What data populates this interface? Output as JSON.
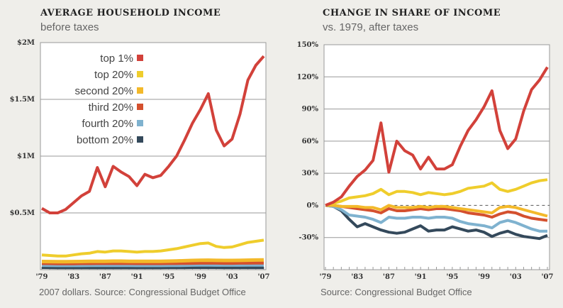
{
  "chart_data": [
    {
      "type": "line",
      "title": "AVERAGE HOUSEHOLD INCOME",
      "subtitle": "before taxes",
      "source": "2007 dollars. Source: Congressional Budget Office",
      "ylim": [
        0,
        2000000
      ],
      "yticks": [
        "$0.5M",
        "$1M",
        "$1.5M",
        "$2M"
      ],
      "ytick_values": [
        500000,
        1000000,
        1500000,
        2000000
      ],
      "xticks": [
        "'79",
        "'83",
        "'87",
        "'91",
        "'95",
        "'99",
        "'03",
        "'07"
      ],
      "x_start": 1979,
      "x_end": 2007,
      "grid": true,
      "legend": "top-left",
      "series": [
        {
          "name": "top 1%",
          "color": "#d2413a",
          "values": [
            540000,
            500000,
            500000,
            530000,
            590000,
            650000,
            690000,
            900000,
            730000,
            910000,
            860000,
            820000,
            740000,
            840000,
            810000,
            830000,
            910000,
            1000000,
            1140000,
            1290000,
            1410000,
            1550000,
            1230000,
            1090000,
            1150000,
            1370000,
            1670000,
            1800000,
            1880000
          ]
        },
        {
          "name": "top 20%",
          "color": "#efcd2c",
          "values": [
            130000,
            125000,
            120000,
            120000,
            130000,
            140000,
            145000,
            160000,
            155000,
            165000,
            165000,
            160000,
            155000,
            160000,
            160000,
            165000,
            175000,
            185000,
            200000,
            215000,
            230000,
            235000,
            205000,
            195000,
            200000,
            220000,
            240000,
            250000,
            260000
          ]
        },
        {
          "name": "second 20%",
          "color": "#f3b92a",
          "values": [
            72000,
            71000,
            70000,
            70000,
            71000,
            72000,
            73000,
            74000,
            74000,
            75000,
            75000,
            74000,
            73000,
            73000,
            73000,
            74000,
            75000,
            77000,
            79000,
            81000,
            83000,
            84000,
            82000,
            81000,
            81000,
            82000,
            84000,
            85000,
            86000
          ]
        },
        {
          "name": "third 20%",
          "color": "#d4502e",
          "values": [
            57000,
            56000,
            55000,
            55000,
            55000,
            56000,
            56000,
            57000,
            57000,
            57000,
            57000,
            57000,
            56000,
            56000,
            56000,
            56000,
            57000,
            57000,
            58000,
            59000,
            60000,
            61000,
            60000,
            59000,
            59000,
            60000,
            60000,
            61000,
            61000
          ]
        },
        {
          "name": "fourth 20%",
          "color": "#7fb2cf",
          "values": [
            40000,
            39000,
            38000,
            38000,
            38000,
            38000,
            39000,
            39000,
            39000,
            39000,
            39000,
            39000,
            38000,
            38000,
            38000,
            38000,
            39000,
            39000,
            40000,
            41000,
            42000,
            42000,
            41000,
            41000,
            41000,
            41000,
            42000,
            42000,
            42000
          ]
        },
        {
          "name": "bottom 20%",
          "color": "#34495b",
          "values": [
            22000,
            21000,
            20000,
            20000,
            20000,
            20000,
            20000,
            20000,
            20000,
            20000,
            20000,
            20000,
            20000,
            20000,
            20000,
            20000,
            21000,
            21000,
            21000,
            22000,
            22000,
            22000,
            22000,
            21000,
            21000,
            21000,
            21000,
            21000,
            21000
          ]
        }
      ]
    },
    {
      "type": "line",
      "title": "CHANGE IN SHARE OF INCOME",
      "subtitle": "vs. 1979, after taxes",
      "source": "Source: Congressional Budget Office",
      "ylim": [
        -60,
        150
      ],
      "yticks": [
        "-30%",
        "0%",
        "30%",
        "60%",
        "90%",
        "120%",
        "150%"
      ],
      "ytick_values": [
        -30,
        0,
        30,
        60,
        90,
        120,
        150
      ],
      "xticks": [
        "'79",
        "'83",
        "'87",
        "'91",
        "'95",
        "'99",
        "'03",
        "'07"
      ],
      "x_start": 1979,
      "x_end": 2007,
      "grid": true,
      "zero_line": "dashed",
      "series": [
        {
          "color": "#d2413a",
          "values": [
            0,
            3,
            8,
            18,
            27,
            33,
            42,
            77,
            31,
            60,
            51,
            47,
            34,
            45,
            34,
            34,
            38,
            55,
            70,
            80,
            92,
            107,
            70,
            53,
            62,
            88,
            108,
            117,
            129
          ]
        },
        {
          "color": "#efcd2c",
          "values": [
            0,
            2,
            4,
            7,
            8,
            9,
            11,
            15,
            10,
            13,
            13,
            12,
            10,
            12,
            11,
            10,
            11,
            13,
            16,
            17,
            18,
            21,
            15,
            13,
            15,
            18,
            21,
            23,
            24
          ]
        },
        {
          "color": "#f3b92a",
          "values": [
            0,
            0,
            -1,
            -1,
            -1,
            -2,
            -2,
            -4,
            0,
            -2,
            -2,
            -2,
            -1,
            -2,
            -1,
            -1,
            -2,
            -3,
            -4,
            -5,
            -6,
            -7,
            -2,
            -1,
            -2,
            -4,
            -6,
            -8,
            -10
          ]
        },
        {
          "color": "#d4502e",
          "values": [
            0,
            0,
            -1,
            -2,
            -3,
            -4,
            -5,
            -7,
            -3,
            -5,
            -5,
            -4,
            -3,
            -4,
            -3,
            -3,
            -4,
            -5,
            -7,
            -8,
            -9,
            -11,
            -8,
            -6,
            -7,
            -10,
            -12,
            -13,
            -14
          ]
        },
        {
          "color": "#7fb2cf",
          "values": [
            0,
            -1,
            -4,
            -9,
            -10,
            -11,
            -13,
            -16,
            -11,
            -12,
            -12,
            -11,
            -11,
            -12,
            -11,
            -11,
            -12,
            -15,
            -17,
            -18,
            -19,
            -21,
            -16,
            -14,
            -16,
            -19,
            -22,
            -24,
            -24
          ]
        },
        {
          "color": "#34495b",
          "values": [
            0,
            -1,
            -5,
            -13,
            -20,
            -17,
            -20,
            -23,
            -25,
            -26,
            -25,
            -22,
            -19,
            -24,
            -23,
            -23,
            -20,
            -22,
            -24,
            -23,
            -25,
            -29,
            -26,
            -24,
            -27,
            -29,
            -30,
            -31,
            -28
          ]
        }
      ]
    }
  ]
}
